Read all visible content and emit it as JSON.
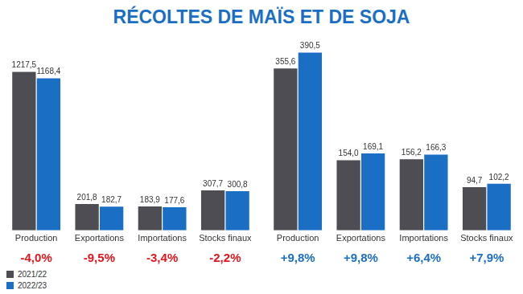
{
  "title": "RÉCOLTES DE MAÏS ET DE SOJA",
  "chart_data": [
    {
      "type": "bar",
      "categories": [
        "Production",
        "Exportations",
        "Importations",
        "Stocks finaux"
      ],
      "series": [
        {
          "name": "2021/22",
          "color": "#4d4d53",
          "values": [
            1217.5,
            201.8,
            183.9,
            307.7
          ],
          "value_labels": [
            "1217,5",
            "201,8",
            "183,9",
            "307,7"
          ]
        },
        {
          "name": "2022/23",
          "color": "#1a6fc4",
          "values": [
            1168.4,
            182.7,
            177.6,
            300.8
          ],
          "value_labels": [
            "1168,4",
            "182,7",
            "177,6",
            "300,8"
          ]
        }
      ],
      "change_labels": [
        "-4,0%",
        "-9,5%",
        "-3,4%",
        "-2,2%"
      ],
      "data_labels": true,
      "tick_labels": "x",
      "grid": false,
      "legend": "bottom-left"
    },
    {
      "type": "bar",
      "categories": [
        "Production",
        "Exportations",
        "Importations",
        "Stocks finaux"
      ],
      "series": [
        {
          "name": "2021/22",
          "color": "#4d4d53",
          "values": [
            355.6,
            154.0,
            156.2,
            94.7
          ],
          "value_labels": [
            "355,6",
            "154,0",
            "156,2",
            "94,7"
          ]
        },
        {
          "name": "2022/23",
          "color": "#1a6fc4",
          "values": [
            390.5,
            169.1,
            166.3,
            102.2
          ],
          "value_labels": [
            "390,5",
            "169,1",
            "166,3",
            "102,2"
          ]
        }
      ],
      "change_labels": [
        "+9,8%",
        "+9,8%",
        "+6,4%",
        "+7,9%"
      ],
      "data_labels": true,
      "tick_labels": "x",
      "grid": false
    }
  ]
}
